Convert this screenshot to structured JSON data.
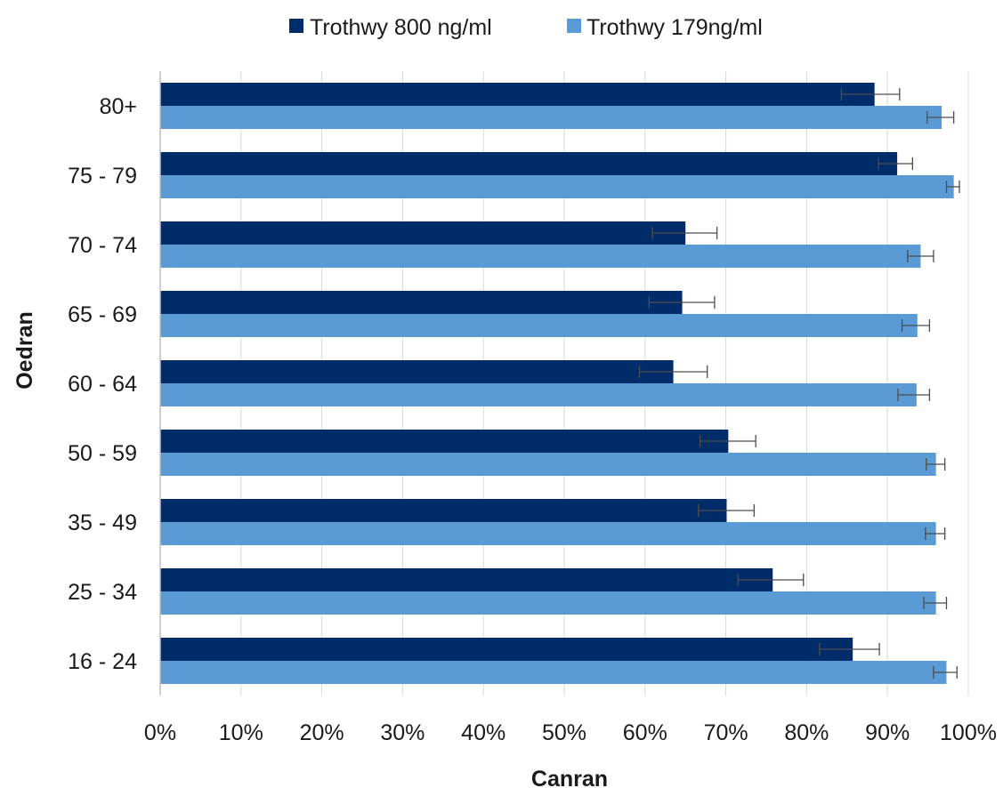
{
  "chart_data": {
    "type": "bar",
    "orientation": "horizontal",
    "categories": [
      "80+",
      "75 - 79",
      "70 - 74",
      "65 - 69",
      "60 - 64",
      "50 - 59",
      "35 - 49",
      "25 - 34",
      "16 - 24"
    ],
    "series": [
      {
        "name": "Trothwy 800 ng/ml",
        "color": "#002d6a",
        "values": [
          88.4,
          91.2,
          65.0,
          64.6,
          63.5,
          70.3,
          70.1,
          75.8,
          85.7
        ],
        "error_low": [
          84.3,
          88.9,
          60.9,
          60.5,
          59.3,
          66.8,
          66.6,
          71.5,
          81.6
        ],
        "error_high": [
          91.5,
          93.1,
          68.9,
          68.6,
          67.7,
          73.7,
          73.5,
          79.6,
          89.0
        ]
      },
      {
        "name": "Trothwy 179ng/ml",
        "color": "#5b9bd5",
        "values": [
          96.7,
          98.2,
          94.1,
          93.7,
          93.6,
          96.0,
          96.0,
          96.0,
          97.3
        ],
        "error_low": [
          94.9,
          97.3,
          92.5,
          91.8,
          91.3,
          94.8,
          94.7,
          94.5,
          95.7
        ],
        "error_high": [
          98.2,
          98.9,
          95.7,
          95.2,
          95.2,
          97.1,
          97.1,
          97.3,
          98.6
        ]
      }
    ],
    "xlim": [
      0,
      100
    ],
    "xticks": [
      "0%",
      "10%",
      "20%",
      "30%",
      "40%",
      "50%",
      "60%",
      "70%",
      "80%",
      "90%",
      "100%"
    ],
    "xlabel": "Canran",
    "ylabel": "Oedran",
    "grid": "vertical",
    "legend_position": "top-center"
  }
}
